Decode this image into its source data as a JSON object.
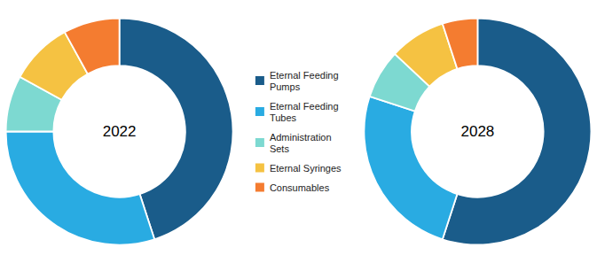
{
  "chart_data": {
    "type": "pie",
    "categories": [
      "Eternal Feeding\nPumps",
      "Eternal Feeding\nTubes",
      "Administration\nSets",
      "Eternal Syringes",
      "Consumables"
    ],
    "colors": [
      "#1a5c8a",
      "#29abe2",
      "#7dd9d1",
      "#f5c242",
      "#f47c30"
    ],
    "series": [
      {
        "name": "2022",
        "values": [
          45,
          30,
          8,
          9,
          8
        ]
      },
      {
        "name": "2028",
        "values": [
          55,
          25,
          7,
          8,
          5
        ]
      }
    ],
    "legend": "center"
  }
}
